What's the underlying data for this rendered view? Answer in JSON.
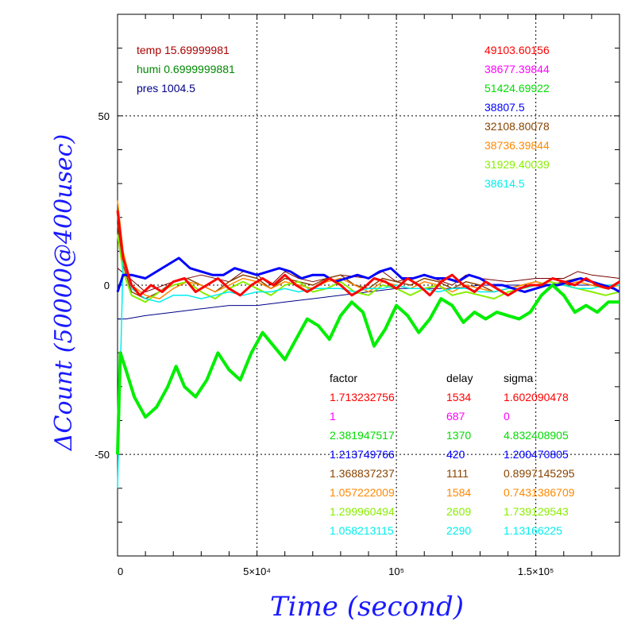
{
  "chart_data": {
    "type": "line",
    "xlabel": "Time (second)",
    "ylabel": "ΔCount (50000@400usec)",
    "xlim": [
      0,
      180000
    ],
    "ylim": [
      -80,
      80
    ],
    "x_tick_labels": [
      "0",
      "5×10⁴",
      "10⁵",
      "1.5×10⁵"
    ],
    "y_tick_labels": [
      "50",
      "0",
      "-50"
    ],
    "grid": true,
    "env": [
      {
        "label": "temp 15.69999981",
        "color": "#aa0000"
      },
      {
        "label": "humi 0.6999999881",
        "color": "#008800"
      },
      {
        "label": "pres 1004.5",
        "color": "#000088"
      }
    ],
    "legend_values": [
      {
        "value": "49103.60156",
        "color": "#ff0000"
      },
      {
        "value": "38677.39844",
        "color": "#ff00ff"
      },
      {
        "value": "51424.69922",
        "color": "#00dd00"
      },
      {
        "value": "38807.5",
        "color": "#0000ff"
      },
      {
        "value": "32108.80078",
        "color": "#884400"
      },
      {
        "value": "38736.39844",
        "color": "#ff8800"
      },
      {
        "value": "31929.40039",
        "color": "#88ee00"
      },
      {
        "value": "38614.5",
        "color": "#00eeee"
      }
    ],
    "table": {
      "headers": [
        "factor",
        "delay",
        "sigma"
      ],
      "rows": [
        {
          "factor": "1.713232756",
          "delay": "1534",
          "sigma": "1.602090478",
          "color": "#ff0000"
        },
        {
          "factor": "1",
          "delay": "687",
          "sigma": "0",
          "color": "#ff00ff"
        },
        {
          "factor": "2.381947517",
          "delay": "1370",
          "sigma": "4.832408905",
          "color": "#00dd00"
        },
        {
          "factor": "1.213749766",
          "delay": "420",
          "sigma": "1.200470805",
          "color": "#0000ff"
        },
        {
          "factor": "1.368837237",
          "delay": "1111",
          "sigma": "0.8997145295",
          "color": "#884400"
        },
        {
          "factor": "1.057222009",
          "delay": "1584",
          "sigma": "0.7431386709",
          "color": "#ff8800"
        },
        {
          "factor": "1.299960494",
          "delay": "2609",
          "sigma": "1.739129543",
          "color": "#88ee00"
        },
        {
          "factor": "1.058213115",
          "delay": "2290",
          "sigma": "1.13166225",
          "color": "#00eeee"
        }
      ]
    },
    "series": [
      {
        "color": "#00ee00",
        "width": 4,
        "x": [
          0,
          1000,
          3000,
          6000,
          10000,
          14000,
          18000,
          21000,
          24000,
          28000,
          32000,
          36000,
          40000,
          44000,
          48000,
          52000,
          56000,
          60000,
          64000,
          68000,
          72000,
          76000,
          80000,
          84000,
          88000,
          92000,
          96000,
          100000,
          104000,
          108000,
          112000,
          116000,
          120000,
          124000,
          128000,
          132000,
          136000,
          140000,
          144000,
          148000,
          152000,
          156000,
          160000,
          164000,
          168000,
          172000,
          176000,
          180000
        ],
        "y": [
          -50,
          -20,
          -25,
          -33,
          -39,
          -36,
          -30,
          -24,
          -30,
          -33,
          -28,
          -20,
          -25,
          -28,
          -20,
          -14,
          -18,
          -22,
          -16,
          -10,
          -12,
          -16,
          -9,
          -5,
          -8,
          -18,
          -13,
          -6,
          -9,
          -14,
          -10,
          -4,
          -6,
          -11,
          -8,
          -10,
          -8,
          -9,
          -10,
          -8,
          -3,
          0,
          -3,
          -8,
          -6,
          -8,
          -5,
          -5
        ]
      },
      {
        "color": "#0000ff",
        "width": 3,
        "x": [
          0,
          2000,
          5000,
          10000,
          14000,
          18000,
          22000,
          26000,
          30000,
          34000,
          38000,
          42000,
          46000,
          50000,
          54000,
          58000,
          62000,
          66000,
          70000,
          74000,
          78000,
          82000,
          86000,
          90000,
          94000,
          98000,
          102000,
          106000,
          110000,
          114000,
          118000,
          122000,
          126000,
          130000,
          134000,
          138000,
          142000,
          146000,
          150000,
          154000,
          158000,
          162000,
          166000,
          170000,
          174000,
          178000,
          180000
        ],
        "y": [
          -2,
          3,
          3,
          2,
          4,
          6,
          8,
          5,
          4,
          3,
          3,
          5,
          4,
          3,
          4,
          5,
          4,
          2,
          3,
          3,
          1,
          2,
          3,
          2,
          4,
          5,
          2,
          2,
          3,
          2,
          2,
          1,
          3,
          2,
          0,
          0,
          -1,
          -2,
          -1,
          0,
          0,
          1,
          2,
          1,
          0,
          -1,
          -2
        ]
      },
      {
        "color": "#ff0000",
        "width": 3,
        "x": [
          0,
          2000,
          5000,
          8000,
          12000,
          16000,
          20000,
          24000,
          28000,
          32000,
          36000,
          40000,
          44000,
          48000,
          52000,
          56000,
          60000,
          64000,
          68000,
          72000,
          76000,
          80000,
          84000,
          88000,
          92000,
          96000,
          100000,
          104000,
          108000,
          112000,
          116000,
          120000,
          124000,
          128000,
          132000,
          136000,
          140000,
          144000,
          148000,
          152000,
          156000,
          160000,
          164000,
          168000,
          172000,
          176000,
          180000
        ],
        "y": [
          22,
          8,
          0,
          -3,
          0,
          -2,
          1,
          2,
          -2,
          0,
          2,
          -1,
          -3,
          0,
          2,
          0,
          3,
          0,
          -2,
          0,
          2,
          0,
          -3,
          -1,
          2,
          1,
          -1,
          2,
          0,
          -3,
          1,
          3,
          0,
          -2,
          1,
          -1,
          -3,
          -1,
          0,
          0,
          2,
          1,
          0,
          2,
          0,
          -1,
          1
        ]
      },
      {
        "color": "#884400",
        "width": 1.5,
        "x": [
          0,
          2000,
          5000,
          10000,
          15000,
          20000,
          25000,
          30000,
          35000,
          40000,
          45000,
          50000,
          55000,
          60000,
          65000,
          70000,
          75000,
          80000,
          85000,
          90000,
          95000,
          100000,
          105000,
          110000,
          115000,
          120000,
          125000,
          130000,
          135000,
          140000,
          145000,
          150000,
          155000,
          160000,
          165000,
          170000,
          175000,
          180000
        ],
        "y": [
          18,
          6,
          -2,
          -4,
          -2,
          1,
          2,
          0,
          -2,
          1,
          3,
          2,
          -1,
          2,
          1,
          0,
          2,
          3,
          0,
          -1,
          2,
          1,
          0,
          2,
          1,
          -1,
          1,
          0,
          -2,
          -1,
          0,
          1,
          0,
          1,
          2,
          1,
          0,
          0
        ]
      },
      {
        "color": "#ff8800",
        "width": 1.5,
        "x": [
          0,
          2000,
          5000,
          10000,
          15000,
          20000,
          25000,
          30000,
          35000,
          40000,
          45000,
          50000,
          55000,
          60000,
          65000,
          70000,
          75000,
          80000,
          85000,
          90000,
          95000,
          100000,
          105000,
          110000,
          115000,
          120000,
          125000,
          130000,
          135000,
          140000,
          145000,
          150000,
          155000,
          160000,
          165000,
          170000,
          175000,
          180000
        ],
        "y": [
          25,
          10,
          0,
          -3,
          -4,
          -1,
          1,
          0,
          -2,
          0,
          2,
          1,
          -1,
          1,
          0,
          -1,
          1,
          2,
          0,
          -2,
          1,
          0,
          -1,
          1,
          0,
          -2,
          0,
          -1,
          -2,
          -1,
          0,
          1,
          0,
          0,
          1,
          0,
          -1,
          0
        ]
      },
      {
        "color": "#88ee00",
        "width": 2,
        "x": [
          0,
          2000,
          5000,
          10000,
          15000,
          20000,
          25000,
          30000,
          35000,
          40000,
          45000,
          50000,
          55000,
          60000,
          65000,
          70000,
          75000,
          80000,
          85000,
          90000,
          95000,
          100000,
          105000,
          110000,
          115000,
          120000,
          125000,
          130000,
          135000,
          140000,
          145000,
          150000,
          155000,
          160000,
          165000,
          170000,
          175000,
          180000
        ],
        "y": [
          15,
          4,
          -3,
          -5,
          -2,
          0,
          1,
          -2,
          -4,
          -1,
          1,
          -1,
          -3,
          0,
          1,
          -2,
          -1,
          1,
          -2,
          -3,
          0,
          -1,
          -3,
          -1,
          0,
          -3,
          -2,
          -3,
          -4,
          -2,
          -1,
          0,
          1,
          0,
          -1,
          -2,
          -3,
          -2
        ]
      },
      {
        "color": "#00eeee",
        "width": 1.5,
        "x": [
          0,
          2000,
          5000,
          10000,
          15000,
          20000,
          25000,
          30000,
          35000,
          40000,
          45000,
          50000,
          55000,
          60000,
          65000,
          70000,
          75000,
          80000,
          85000,
          90000,
          95000,
          100000,
          105000,
          110000,
          115000,
          120000,
          125000,
          130000,
          135000,
          140000,
          145000,
          150000,
          155000,
          160000,
          165000,
          170000,
          175000,
          180000
        ],
        "y": [
          -60,
          8,
          -1,
          -4,
          -5,
          -3,
          -3,
          -4,
          -3,
          -2,
          -3,
          -2,
          -2,
          -1,
          -2,
          -1,
          -1,
          -1,
          -2,
          -1,
          -1,
          0,
          -1,
          -1,
          -2,
          -1,
          -1,
          -2,
          -2,
          -1,
          -1,
          0,
          0,
          0,
          -1,
          -1,
          0,
          0
        ]
      },
      {
        "color": "#000088",
        "width": 1,
        "x": [
          0,
          3000,
          10000,
          20000,
          30000,
          40000,
          50000,
          60000,
          70000,
          80000,
          90000,
          100000,
          110000,
          120000,
          130000,
          140000,
          150000,
          160000,
          170000,
          180000
        ],
        "y": [
          -10,
          -10,
          -9,
          -8,
          -7,
          -6,
          -6,
          -5,
          -4,
          -3,
          -2,
          -1,
          -1,
          -1,
          0,
          0,
          0,
          0,
          0,
          0
        ]
      },
      {
        "color": "#770000",
        "width": 1,
        "x": [
          0,
          3000,
          10000,
          20000,
          30000,
          40000,
          45000,
          50000,
          55000,
          60000,
          65000,
          70000,
          80000,
          90000,
          95000,
          100000,
          110000,
          120000,
          125000,
          130000,
          140000,
          150000,
          160000,
          165000,
          170000,
          180000
        ],
        "y": [
          5,
          3,
          -2,
          1,
          3,
          1,
          4,
          3,
          0,
          4,
          2,
          1,
          3,
          2,
          4,
          1,
          3,
          0,
          3,
          2,
          1,
          2,
          2,
          4,
          3,
          2
        ]
      }
    ]
  }
}
